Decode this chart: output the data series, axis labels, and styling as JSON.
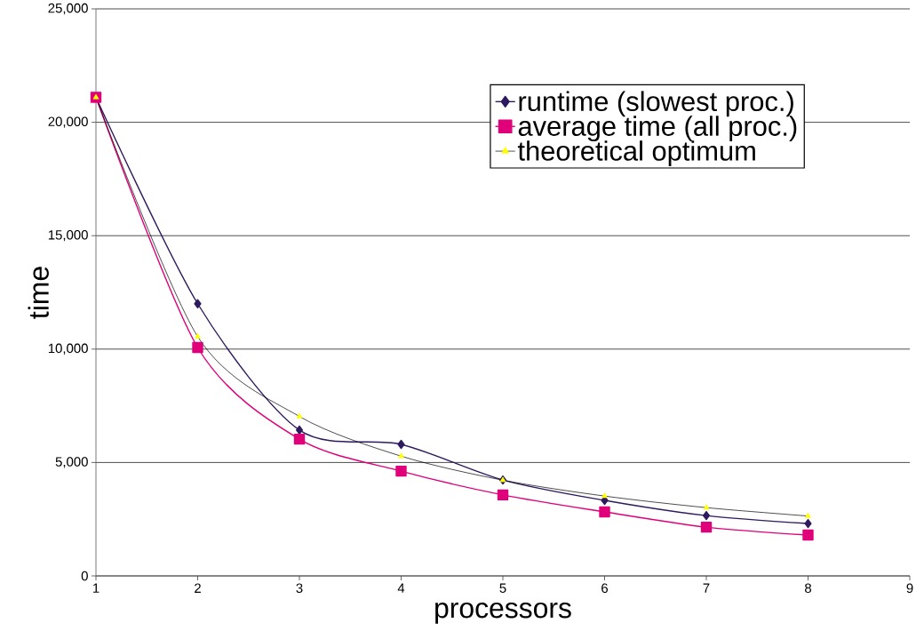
{
  "chart_data": {
    "type": "line",
    "xlabel": "processors",
    "ylabel": "time",
    "x": [
      1,
      2,
      3,
      4,
      5,
      6,
      7,
      8
    ],
    "series": [
      {
        "name": "runtime (slowest proc.)",
        "color": "#2e1a5e",
        "marker": "diamond",
        "values": [
          21100,
          12000,
          6430,
          5800,
          4230,
          3330,
          2660,
          2310
        ]
      },
      {
        "name": "average time (all proc.)",
        "color": "#e0007a",
        "marker": "square",
        "values": [
          21100,
          10070,
          6030,
          4620,
          3570,
          2820,
          2150,
          1800
        ]
      },
      {
        "name": "theoretical optimum",
        "color": "#000000",
        "colors": [
          "#ffff00",
          "#ffff00",
          "#ffff00",
          "#ffff00",
          "#ffff00",
          "#ffff00",
          "#ffff00",
          "#ffff00"
        ],
        "marker": "triangle",
        "values": [
          21100,
          10550,
          7030,
          5280,
          4220,
          3520,
          3010,
          2640
        ]
      }
    ],
    "xlim": [
      1,
      9
    ],
    "ylim": [
      0,
      25000
    ],
    "xticks": [
      1,
      2,
      3,
      4,
      5,
      6,
      7,
      8,
      9
    ],
    "yticks": [
      0,
      {
        "value": 5000,
        "label": "5,000"
      },
      {
        "value": 10000,
        "label": "10,000"
      },
      {
        "value": 15000,
        "label": "15,000"
      },
      {
        "value": 20000,
        "label": "20,000"
      },
      {
        "value": 25000,
        "label": "25,000"
      }
    ],
    "grid": "y",
    "legend": "top right",
    "line_style": "solid"
  }
}
